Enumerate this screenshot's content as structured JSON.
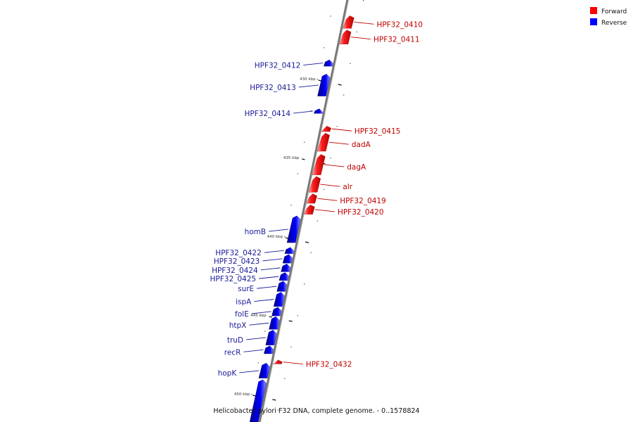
{
  "caption": "Helicobacter pylori F32 DNA, complete genome. - 0..1578824",
  "legend": [
    {
      "label": "Forward",
      "color": "#ff0000"
    },
    {
      "label": "Reverse",
      "color": "#0000ff"
    }
  ],
  "colors": {
    "forward": "#ff0000",
    "reverse": "#0000ff",
    "backbone": "#888888",
    "label_forward": "#c00000",
    "label_reverse": "#1a1a99"
  },
  "ticks": [
    {
      "label": "430 kbp",
      "pos_kbp": 430
    },
    {
      "label": "435 kbp",
      "pos_kbp": 435
    },
    {
      "label": "440 kbp",
      "pos_kbp": 440
    },
    {
      "label": "445 kbp",
      "pos_kbp": 445
    },
    {
      "label": "450 kbp",
      "pos_kbp": 450
    }
  ],
  "genes": [
    {
      "name": "HPF32_0410",
      "strand": "forward",
      "start_kbp": 426.0,
      "end_kbp": 426.8
    },
    {
      "name": "HPF32_0411",
      "strand": "forward",
      "start_kbp": 426.9,
      "end_kbp": 427.8
    },
    {
      "name": "HPF32_0412",
      "strand": "reverse",
      "start_kbp": 428.8,
      "end_kbp": 429.2
    },
    {
      "name": "HPF32_0413",
      "strand": "reverse",
      "start_kbp": 429.7,
      "end_kbp": 431.1
    },
    {
      "name": "HPF32_0414",
      "strand": "reverse",
      "start_kbp": 431.9,
      "end_kbp": 432.2
    },
    {
      "name": "HPF32_0415",
      "strand": "forward",
      "start_kbp": 433.0,
      "end_kbp": 433.35
    },
    {
      "name": "dadA",
      "strand": "forward",
      "start_kbp": 433.45,
      "end_kbp": 434.6
    },
    {
      "name": "dagA",
      "strand": "forward",
      "start_kbp": 434.8,
      "end_kbp": 436.1
    },
    {
      "name": "alr",
      "strand": "forward",
      "start_kbp": 436.2,
      "end_kbp": 437.2
    },
    {
      "name": "HPF32_0419",
      "strand": "forward",
      "start_kbp": 437.3,
      "end_kbp": 437.9
    },
    {
      "name": "HPF32_0420",
      "strand": "forward",
      "start_kbp": 438.0,
      "end_kbp": 438.6
    },
    {
      "name": "homB",
      "strand": "reverse",
      "start_kbp": 438.7,
      "end_kbp": 440.4
    },
    {
      "name": "HPF32_0422",
      "strand": "reverse",
      "start_kbp": 440.7,
      "end_kbp": 441.1
    },
    {
      "name": "HPF32_0423",
      "strand": "reverse",
      "start_kbp": 441.15,
      "end_kbp": 441.7
    },
    {
      "name": "HPF32_0424",
      "strand": "reverse",
      "start_kbp": 441.75,
      "end_kbp": 442.25
    },
    {
      "name": "HPF32_0425",
      "strand": "reverse",
      "start_kbp": 442.3,
      "end_kbp": 442.8
    },
    {
      "name": "surE",
      "strand": "reverse",
      "start_kbp": 442.85,
      "end_kbp": 443.5
    },
    {
      "name": "ispA",
      "strand": "reverse",
      "start_kbp": 443.55,
      "end_kbp": 444.45
    },
    {
      "name": "folE",
      "strand": "reverse",
      "start_kbp": 444.5,
      "end_kbp": 445.05
    },
    {
      "name": "htpX",
      "strand": "reverse",
      "start_kbp": 445.1,
      "end_kbp": 445.9
    },
    {
      "name": "truD",
      "strand": "reverse",
      "start_kbp": 445.95,
      "end_kbp": 446.9
    },
    {
      "name": "recR",
      "strand": "reverse",
      "start_kbp": 446.95,
      "end_kbp": 447.45
    },
    {
      "name": "hopK",
      "strand": "reverse",
      "start_kbp": 448.05,
      "end_kbp": 449.0
    },
    {
      "name": "HPF32_0432",
      "strand": "forward",
      "start_kbp": 447.85,
      "end_kbp": 448.1
    },
    {
      "name": "",
      "strand": "reverse",
      "start_kbp": 449.1,
      "end_kbp": 452.0
    }
  ]
}
